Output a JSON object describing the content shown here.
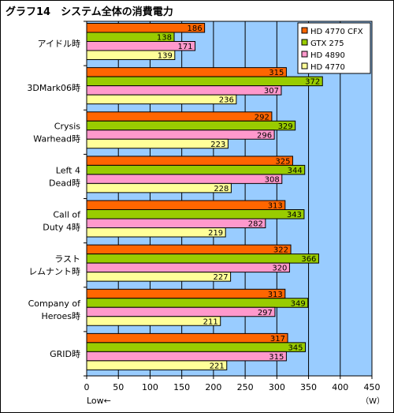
{
  "chart_data": {
    "type": "bar",
    "orientation": "horizontal",
    "title": "グラフ14　システム全体の消費電力",
    "unit_label": "（W）",
    "low_label": "Low←",
    "xlim": [
      0,
      450
    ],
    "x_ticks": [
      0,
      50,
      100,
      150,
      200,
      250,
      300,
      350,
      400,
      450
    ],
    "grid": true,
    "legend_position": "top-right",
    "categories": [
      {
        "lines": [
          "アイドル時"
        ]
      },
      {
        "lines": [
          "3DMark06時"
        ]
      },
      {
        "lines": [
          "Crysis",
          "Warhead時"
        ]
      },
      {
        "lines": [
          "Left 4",
          "Dead時"
        ]
      },
      {
        "lines": [
          "Call of",
          "Duty 4時"
        ]
      },
      {
        "lines": [
          "ラスト",
          "レムナント時"
        ]
      },
      {
        "lines": [
          "Company of",
          "Heroes時"
        ]
      },
      {
        "lines": [
          "GRID時"
        ]
      }
    ],
    "series": [
      {
        "name": "HD 4770 CFX",
        "color": "#ff6600",
        "values": [
          186,
          315,
          292,
          325,
          313,
          322,
          313,
          317
        ]
      },
      {
        "name": "GTX 275",
        "color": "#99cc00",
        "values": [
          138,
          372,
          329,
          344,
          343,
          366,
          349,
          345
        ]
      },
      {
        "name": "HD 4890",
        "color": "#ff99cc",
        "values": [
          171,
          307,
          296,
          308,
          282,
          320,
          297,
          315
        ]
      },
      {
        "name": "HD 4770",
        "color": "#ffff99",
        "values": [
          139,
          236,
          223,
          228,
          219,
          227,
          211,
          221
        ]
      }
    ],
    "colors": {
      "plot_background": "#99ccff",
      "frame": "#000000"
    }
  }
}
